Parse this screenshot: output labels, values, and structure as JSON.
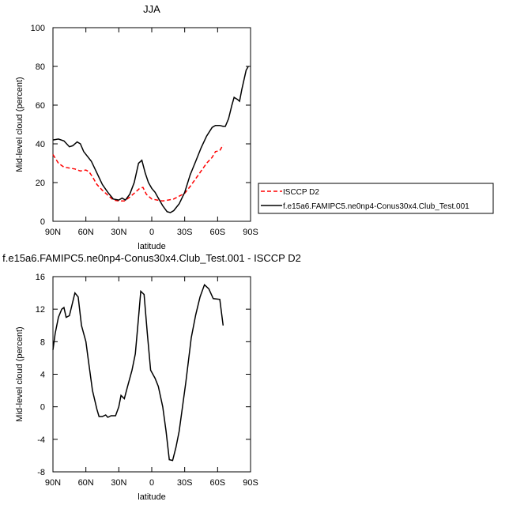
{
  "chart_data": [
    {
      "type": "line",
      "title": "JJA",
      "xlabel": "latitude",
      "ylabel": "Mid-level cloud (percent)",
      "xlim": [
        90,
        -90
      ],
      "ylim": [
        0,
        100
      ],
      "xticks": [
        {
          "value": 90,
          "label": "90N"
        },
        {
          "value": 60,
          "label": "60N"
        },
        {
          "value": 30,
          "label": "30N"
        },
        0,
        {
          "value": -30,
          "label": "30S"
        },
        {
          "value": -60,
          "label": "60S"
        },
        {
          "value": -90,
          "label": "90S"
        }
      ],
      "yticks": [
        0,
        20,
        40,
        60,
        80,
        100
      ],
      "legend": "right",
      "series": [
        {
          "name": "ISCCP D2",
          "color": "#ff0000",
          "style": "dashed",
          "x": [
            90,
            85,
            80,
            75,
            70,
            65,
            60,
            57,
            54,
            50,
            45,
            40,
            35,
            30,
            25,
            20,
            15,
            11,
            8,
            5,
            0,
            -5,
            -10,
            -15,
            -20,
            -25,
            -30,
            -35,
            -40,
            -45,
            -50,
            -55,
            -58,
            -62,
            -65
          ],
          "values": [
            34.5,
            30,
            28,
            27.5,
            27,
            26,
            26.5,
            25.5,
            23,
            19,
            16,
            13.5,
            11,
            10.5,
            10.5,
            12.5,
            15,
            17,
            17.5,
            14,
            11.5,
            11,
            10.5,
            11,
            11.5,
            13,
            14.5,
            18,
            22,
            26,
            30,
            33,
            36,
            36.5,
            39.5
          ]
        },
        {
          "name": "f.e15a6.FAMIPC5.ne0np4-Conus30x4.Club_Test.001",
          "color": "#000000",
          "style": "solid",
          "x": [
            90,
            85,
            80,
            75,
            72,
            68,
            65,
            62,
            55,
            50,
            45,
            40,
            35,
            30,
            27,
            24,
            20,
            16,
            12,
            9,
            6,
            3,
            0,
            -3,
            -6,
            -10,
            -14,
            -17,
            -20,
            -25,
            -30,
            -35,
            -40,
            -45,
            -50,
            -55,
            -58,
            -62,
            -65,
            -67,
            -70,
            -73,
            -75,
            -78,
            -80,
            -82,
            -86,
            -88
          ],
          "values": [
            42,
            42.5,
            41.5,
            38.5,
            39,
            41,
            40,
            36,
            31,
            25,
            19,
            15,
            11.5,
            11,
            12,
            11,
            14,
            20,
            30,
            31.5,
            25,
            20,
            17,
            15,
            12,
            8,
            5,
            4.5,
            5.5,
            9,
            15,
            24,
            31,
            38,
            44,
            48.5,
            49.5,
            49.5,
            49,
            49,
            53,
            60,
            64,
            63,
            62,
            68,
            78,
            80
          ]
        }
      ]
    },
    {
      "type": "line",
      "title": "f.e15a6.FAMIPC5.ne0np4-Conus30x4.Club_Test.001 - ISCCP D2",
      "xlabel": "latitude",
      "ylabel": "Mid-level cloud (percent)",
      "xlim": [
        90,
        -90
      ],
      "ylim": [
        -8,
        16
      ],
      "xticks": [
        {
          "value": 90,
          "label": "90N"
        },
        {
          "value": 60,
          "label": "60N"
        },
        {
          "value": 30,
          "label": "30N"
        },
        0,
        {
          "value": -30,
          "label": "30S"
        },
        {
          "value": -60,
          "label": "60S"
        },
        {
          "value": -90,
          "label": "90S"
        }
      ],
      "yticks": [
        -8,
        -4,
        0,
        4,
        8,
        12,
        16
      ],
      "series": [
        {
          "color": "#000000",
          "style": "solid",
          "x": [
            90,
            88,
            85,
            82,
            80,
            78,
            75,
            70,
            67,
            64,
            60,
            58,
            54,
            50,
            48,
            45,
            42,
            40,
            37,
            33,
            30,
            28,
            25,
            22,
            18,
            15,
            12,
            10,
            7,
            4,
            1,
            -3,
            -6,
            -10,
            -13,
            -16,
            -19,
            -22,
            -25,
            -28,
            -31,
            -36,
            -40,
            -44,
            -48,
            -52,
            -56,
            -62,
            -65
          ],
          "values": [
            7,
            9,
            11,
            12,
            12.2,
            11,
            11.2,
            14,
            13.5,
            10,
            8,
            6,
            2,
            -0.3,
            -1.2,
            -1.2,
            -1,
            -1.3,
            -1.1,
            -1.1,
            0,
            1.4,
            1,
            2.5,
            4.5,
            6.5,
            11,
            14.2,
            13.8,
            9,
            4.5,
            3.5,
            2.5,
            0,
            -3,
            -6.5,
            -6.6,
            -5,
            -3,
            0,
            3,
            8.5,
            11.3,
            13.5,
            15,
            14.5,
            13.3,
            13.2,
            10
          ]
        }
      ]
    }
  ]
}
